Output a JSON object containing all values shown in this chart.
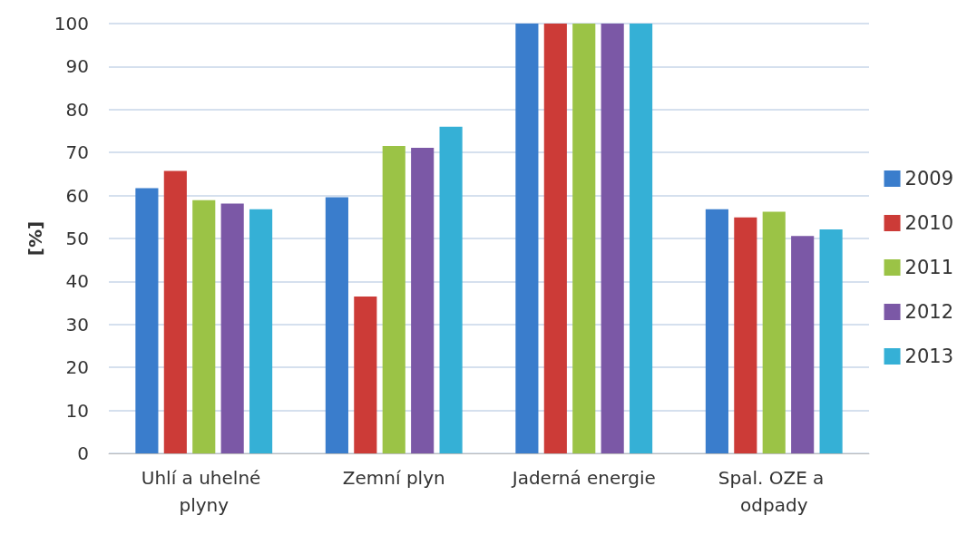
{
  "chart_data": {
    "type": "bar",
    "ylabel": "[%]",
    "categories": [
      "Uhlí a uhelné plyny",
      "Zemní plyn",
      "Jaderná energie",
      "Spal. OZE a odpady"
    ],
    "series": [
      {
        "name": "2009",
        "color": "#3a7dcc",
        "values": [
          61.7,
          59.6,
          100,
          56.8
        ]
      },
      {
        "name": "2010",
        "color": "#cc3b37",
        "values": [
          65.7,
          36.5,
          100,
          54.9
        ]
      },
      {
        "name": "2011",
        "color": "#9bc346",
        "values": [
          58.9,
          71.5,
          100,
          56.2
        ]
      },
      {
        "name": "2012",
        "color": "#7b58a6",
        "values": [
          58.1,
          71.1,
          100,
          50.6
        ]
      },
      {
        "name": "2013",
        "color": "#35b0d6",
        "values": [
          56.8,
          76.0,
          100,
          52.1
        ]
      }
    ],
    "ylim": [
      0,
      100
    ],
    "yticks": [
      0,
      10,
      20,
      30,
      40,
      50,
      60,
      70,
      80,
      90,
      100
    ],
    "grid": "y",
    "legend": "right"
  }
}
